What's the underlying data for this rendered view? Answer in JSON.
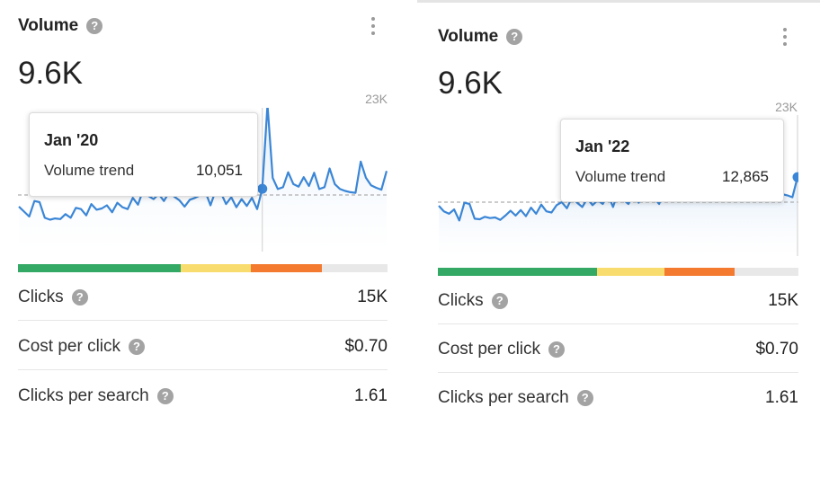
{
  "panels": [
    {
      "title": "Volume",
      "value": "9.6K",
      "chart_max_label": "23K",
      "tooltip": {
        "date": "Jan '20",
        "label": "Volume trend",
        "value": "10,051"
      },
      "trend": [
        7.2,
        6.4,
        5.6,
        8.1,
        7.9,
        5.4,
        5.1,
        5.3,
        5.2,
        6.0,
        5.4,
        7.0,
        6.8,
        5.8,
        7.6,
        6.7,
        6.9,
        7.4,
        6.3,
        7.8,
        7.1,
        6.8,
        8.6,
        7.5,
        9.9,
        8.9,
        8.4,
        9.2,
        8.1,
        9.5,
        8.8,
        8.2,
        7.2,
        8.3,
        8.6,
        9.0,
        9.6,
        7.4,
        9.8,
        9.4,
        7.6,
        8.7,
        7.1,
        8.4,
        7.3,
        8.6,
        6.8,
        10.051,
        23.5,
        11.8,
        10.0,
        10.3,
        12.7,
        10.8,
        10.4,
        11.9,
        10.5,
        12.6,
        10.0,
        10.3,
        13.3,
        10.8,
        10.0,
        9.7,
        9.5,
        9.4,
        14.4,
        11.8,
        10.6,
        10.2,
        9.9,
        12.9
      ],
      "highlight_index": 47,
      "segments": [
        {
          "color": "#34a865",
          "fraction": 0.441
        },
        {
          "color": "#f9dc6e",
          "fraction": 0.188
        },
        {
          "color": "#f47a2f",
          "fraction": 0.193
        },
        {
          "color": "#e8e8e8",
          "fraction": 0.178
        }
      ],
      "metrics": [
        {
          "label": "Clicks",
          "value": "15K"
        },
        {
          "label": "Cost per click",
          "value": "$0.70"
        },
        {
          "label": "Clicks per search",
          "value": "1.61"
        }
      ]
    },
    {
      "title": "Volume",
      "value": "9.6K",
      "chart_max_label": "23K",
      "tooltip": {
        "date": "Jan '22",
        "label": "Volume trend",
        "value": "12,865"
      },
      "trend": [
        8.2,
        7.3,
        6.9,
        7.6,
        5.8,
        8.7,
        8.5,
        6.1,
        6.0,
        6.4,
        6.2,
        6.3,
        5.9,
        6.6,
        7.4,
        6.6,
        7.5,
        6.5,
        7.9,
        6.9,
        8.4,
        7.3,
        7.1,
        8.3,
        8.8,
        7.8,
        9.6,
        8.7,
        8.0,
        9.4,
        8.3,
        9.1,
        8.5,
        10.1,
        8.0,
        10.5,
        9.2,
        8.5,
        9.9,
        8.7,
        10.2,
        9.0,
        9.5,
        8.5,
        10.8,
        9.7,
        9.3,
        10.6,
        9.8,
        10.4,
        10.1,
        9.5,
        10.7,
        10.3,
        10.8,
        9.9,
        10.6,
        10.2,
        10.9,
        10.4,
        10.8,
        10.0,
        10.7,
        10.5,
        10.2,
        10.8,
        11.0,
        10.1,
        9.9,
        9.6,
        12.865
      ],
      "highlight_index": 70,
      "segments": [
        {
          "color": "#34a865",
          "fraction": 0.441
        },
        {
          "color": "#f9dc6e",
          "fraction": 0.188
        },
        {
          "color": "#f47a2f",
          "fraction": 0.193
        },
        {
          "color": "#e8e8e8",
          "fraction": 0.178
        }
      ],
      "metrics": [
        {
          "label": "Clicks",
          "value": "15K"
        },
        {
          "label": "Cost per click",
          "value": "$0.70"
        },
        {
          "label": "Clicks per search",
          "value": "1.61"
        }
      ]
    }
  ],
  "chart_data": [
    {
      "type": "area",
      "ylim": [
        0,
        23
      ],
      "ylabel": "",
      "xlabel": ""
    },
    {
      "type": "area",
      "ylim": [
        0,
        23
      ],
      "ylabel": "",
      "xlabel": ""
    }
  ],
  "colors": {
    "line": "#3b86d6",
    "help_icon": "#a3a3a3"
  },
  "icons": {
    "help": "question-circle-icon",
    "menu": "kebab-menu-icon"
  }
}
